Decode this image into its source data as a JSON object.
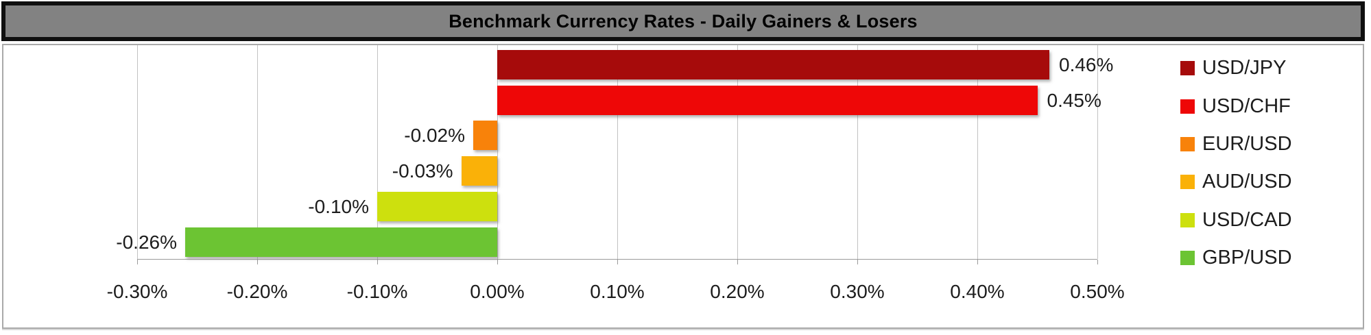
{
  "title_bar": {
    "text": "Benchmark Currency Rates - Daily Gainers & Losers"
  },
  "chart_data": {
    "type": "bar",
    "orientation": "horizontal",
    "title": "Benchmark Currency Rates - Daily Gainers & Losers",
    "xlabel": "",
    "ylabel": "",
    "categories": [
      "USD/JPY",
      "USD/CHF",
      "EUR/USD",
      "AUD/USD",
      "USD/CAD",
      "GBP/USD"
    ],
    "values": [
      0.46,
      0.45,
      -0.02,
      -0.03,
      -0.1,
      -0.26
    ],
    "data_labels": [
      "0.46%",
      "0.45%",
      "-0.02%",
      "-0.03%",
      "-0.10%",
      "-0.26%"
    ],
    "bar_colors": [
      "#a60b0b",
      "#ee0707",
      "#f8820a",
      "#fab108",
      "#cde00e",
      "#6cc433"
    ],
    "xlim": [
      -0.3,
      0.5
    ],
    "x_ticks": [
      -0.3,
      -0.2,
      -0.1,
      0.0,
      0.1,
      0.2,
      0.3,
      0.4,
      0.5
    ],
    "x_tick_labels": [
      "-0.30%",
      "-0.20%",
      "-0.10%",
      "0.00%",
      "0.10%",
      "0.20%",
      "0.30%",
      "0.40%",
      "0.50%"
    ],
    "grid": "vertical-gridlines-on",
    "legend_position": "right",
    "legend": [
      "USD/JPY",
      "USD/CHF",
      "EUR/USD",
      "AUD/USD",
      "USD/CAD",
      "GBP/USD"
    ]
  },
  "colors": {
    "title_bar_bg": "#828282",
    "title_bar_border": "#0f0f0f",
    "title_text": "#000000",
    "panel_border": "#a9a9a9",
    "gridline": "#c2c2c2",
    "axis_line": "#9a9a9a",
    "label_text": "#1c1c1c"
  }
}
